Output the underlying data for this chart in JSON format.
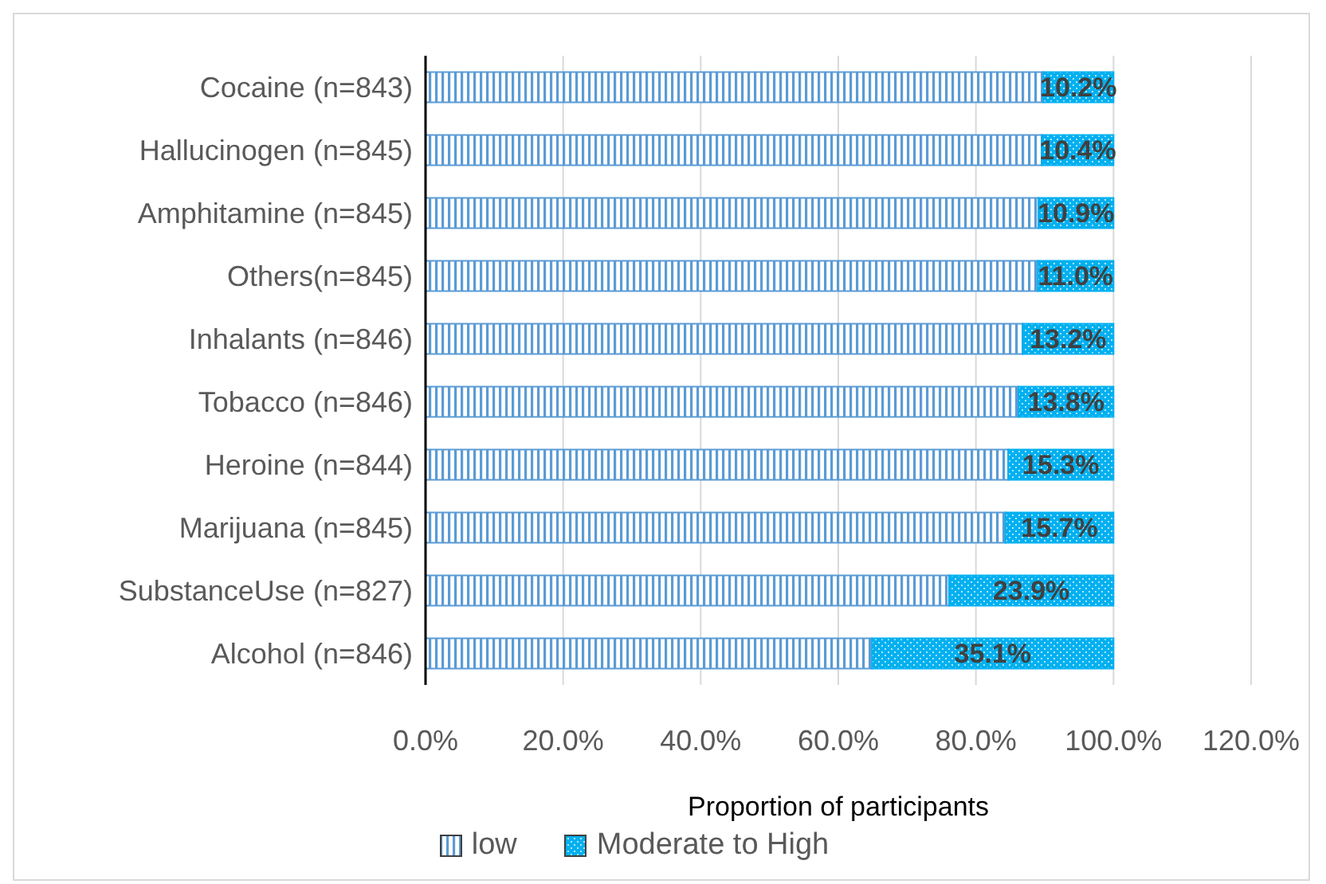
{
  "chart_data": {
    "type": "bar",
    "orientation": "horizontal",
    "stacked": true,
    "xlabel": "Proportion of participants",
    "categories": [
      "Cocaine (n=843)",
      "Hallucinogen (n=845)",
      "Amphitamine (n=845)",
      "Others(n=845)",
      "Inhalants (n=846)",
      "Tobacco (n=846)",
      "Heroine (n=844)",
      "Marijuana (n=845)",
      "SubstanceUse (n=827)",
      "Alcohol (n=846)"
    ],
    "series": [
      {
        "name": "low",
        "color": "#5b9bd5",
        "values": [
          89.8,
          89.6,
          89.1,
          89.0,
          86.8,
          86.2,
          84.7,
          84.3,
          76.1,
          64.9
        ]
      },
      {
        "name": "Moderate to High",
        "color": "#00b0f0",
        "values": [
          10.2,
          10.4,
          10.9,
          11.0,
          13.2,
          13.8,
          15.3,
          15.7,
          23.9,
          35.1
        ],
        "value_labels": [
          "10.2%",
          "10.4%",
          "10.9%",
          "11.0%",
          "13.2%",
          "13.8%",
          "15.3%",
          "15.7%",
          "23.9%",
          "35.1%"
        ]
      }
    ],
    "xlim": [
      0,
      120
    ],
    "xticks": [
      {
        "value": 0,
        "label": "0.0%"
      },
      {
        "value": 20,
        "label": "20.0%"
      },
      {
        "value": 40,
        "label": "40.0%"
      },
      {
        "value": 60,
        "label": "60.0%"
      },
      {
        "value": 80,
        "label": "80.0%"
      },
      {
        "value": 100,
        "label": "100.0%"
      },
      {
        "value": 120,
        "label": "120.0%"
      }
    ],
    "grid": "x",
    "legend": "bottom"
  }
}
